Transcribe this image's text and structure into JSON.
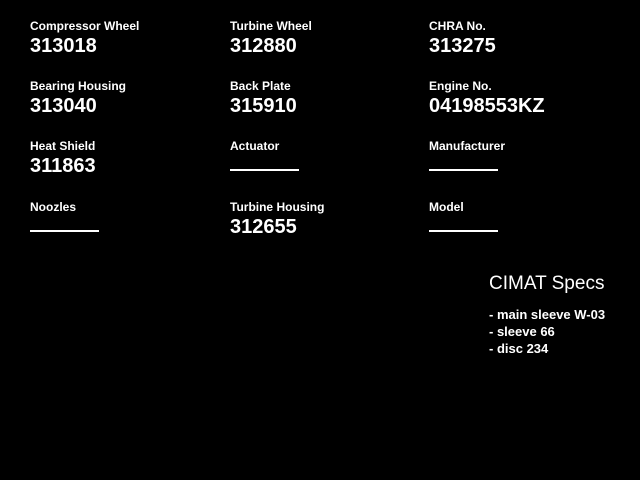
{
  "colors": {
    "background": "#000000",
    "text": "#ffffff"
  },
  "fields": [
    {
      "label": "Compressor Wheel",
      "value": "313018"
    },
    {
      "label": "Turbine Wheel",
      "value": "312880"
    },
    {
      "label": "CHRA No.",
      "value": "313275"
    },
    {
      "label": "Bearing Housing",
      "value": "313040"
    },
    {
      "label": "Back Plate",
      "value": "315910"
    },
    {
      "label": "Engine No.",
      "value": "04198553KZ"
    },
    {
      "label": "Heat Shield",
      "value": "311863"
    },
    {
      "label": "Actuator",
      "value": ""
    },
    {
      "label": "Manufacturer",
      "value": ""
    },
    {
      "label": "Noozles",
      "value": ""
    },
    {
      "label": "Turbine Housing",
      "value": "312655"
    },
    {
      "label": "Model",
      "value": ""
    }
  ],
  "specs": {
    "title": "CIMAT Specs",
    "items": [
      "- main sleeve W-03",
      "- sleeve 66",
      "- disc 234"
    ]
  }
}
